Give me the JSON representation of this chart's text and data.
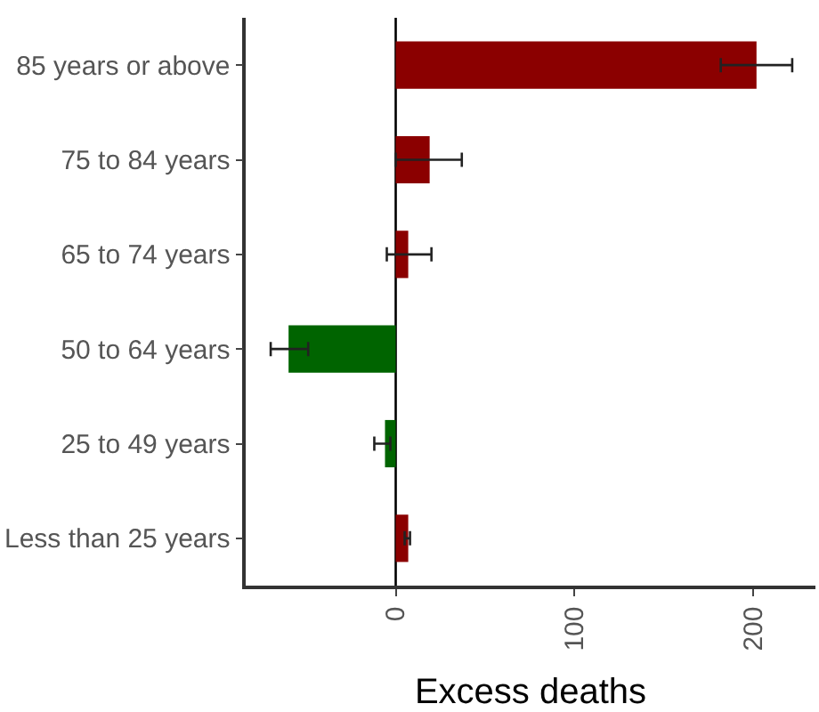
{
  "chart_data": {
    "type": "bar",
    "orientation": "horizontal",
    "xlabel": "Excess deaths",
    "categories": [
      "85 years or above",
      "75 to 84 years",
      "65 to 74 years",
      "50 to 64 years",
      "25 to 49 years",
      "Less than 25 years"
    ],
    "values": [
      202,
      19,
      7,
      -60,
      -6,
      7
    ],
    "colors": [
      "#8b0000",
      "#8b0000",
      "#8b0000",
      "#006400",
      "#006400",
      "#8b0000"
    ],
    "errors": [
      [
        182,
        222
      ],
      [
        0,
        37
      ],
      [
        -5,
        20
      ],
      [
        -70,
        -49
      ],
      [
        -12,
        -3
      ],
      [
        5,
        8
      ]
    ],
    "xlim": [
      -84,
      235
    ],
    "xticks": [
      0,
      100,
      200
    ],
    "ref_lines": [
      {
        "axis": "x",
        "value": 0,
        "color": "#000000"
      }
    ],
    "grid": false
  }
}
